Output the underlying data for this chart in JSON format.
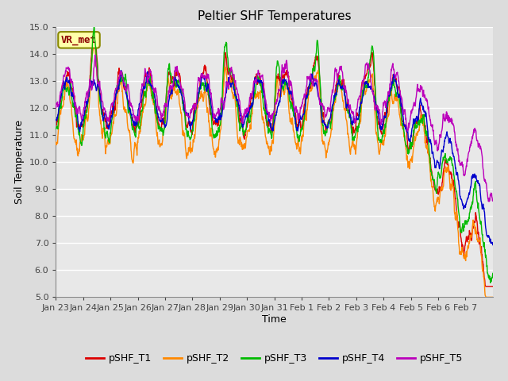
{
  "title": "Peltier SHF Temperatures",
  "xlabel": "Time",
  "ylabel": "Soil Temperature",
  "ylim": [
    5.0,
    15.0
  ],
  "yticks": [
    5.0,
    6.0,
    7.0,
    8.0,
    9.0,
    10.0,
    11.0,
    12.0,
    13.0,
    14.0,
    15.0
  ],
  "bg_color": "#dcdcdc",
  "plot_bg": "#e8e8e8",
  "grid_color": "#ffffff",
  "vr_met_label": "VR_met",
  "series_colors": [
    "#dd0000",
    "#ff8800",
    "#00bb00",
    "#0000cc",
    "#bb00bb"
  ],
  "series_labels": [
    "pSHF_T1",
    "pSHF_T2",
    "pSHF_T3",
    "pSHF_T4",
    "pSHF_T5"
  ],
  "xtick_labels": [
    "Jan 23",
    "Jan 24",
    "Jan 25",
    "Jan 26",
    "Jan 27",
    "Jan 28",
    "Jan 29",
    "Jan 30",
    "Jan 31",
    "Feb 1",
    "Feb 2",
    "Feb 3",
    "Feb 4",
    "Feb 5",
    "Feb 6",
    "Feb 7"
  ],
  "n_days": 16,
  "title_fontsize": 11,
  "axis_label_fontsize": 9,
  "tick_fontsize": 8,
  "legend_fontsize": 9
}
